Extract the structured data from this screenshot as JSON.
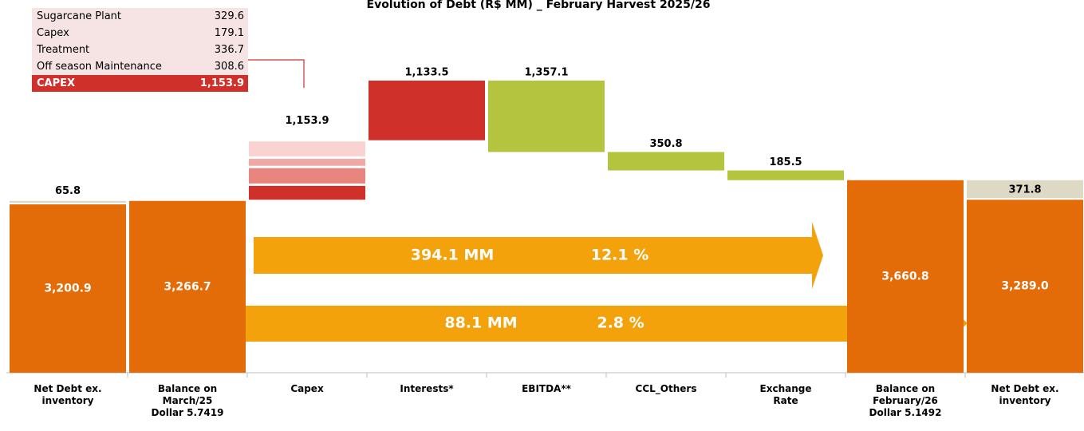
{
  "chart_data": {
    "type": "waterfall",
    "title": "Evolution of Debt (R$ MM) _ February Harvest 2025/26",
    "categories": [
      "Net Debt ex.\ninventory",
      "Balance on\nMarch/25\nDollar 5.7419",
      "Capex",
      "Interests*",
      "EBITDA**",
      "CCL_Others",
      "Exchange\nRate",
      "Balance on\nFebruary/26\nDollar 5.1492",
      "Net Debt ex.\ninventory"
    ],
    "values": [
      3200.9,
      3266.7,
      1153.9,
      1133.5,
      1357.1,
      350.8,
      185.5,
      3660.8,
      3289.0
    ],
    "value_labels": [
      "3,200.9",
      "3,266.7",
      "1,153.9",
      "1,133.5",
      "1,357.1",
      "350.8",
      "185.5",
      "3,660.8",
      "3,289.0"
    ],
    "measure": [
      "total",
      "total",
      "increase",
      "increase",
      "decrease",
      "decrease",
      "decrease",
      "total",
      "total"
    ],
    "colors": {
      "total": "#e36c09",
      "increase": "#d0302a",
      "decrease": "#b5c43f",
      "cap": "#ddd9c4"
    },
    "cap_values": [
      65.8,
      null,
      null,
      null,
      null,
      null,
      null,
      null,
      371.8
    ],
    "capex_breakdown": {
      "names": [
        "Sugarcane Plant",
        "Capex",
        "Treatment",
        "Off season Maintenance"
      ],
      "values": [
        329.6,
        179.1,
        336.7,
        308.6
      ],
      "colors": [
        "#f8d3d2",
        "#f0aaa6",
        "#e8857e",
        "#d0302a"
      ],
      "total_name": "CAPEX"
    },
    "annotations": [
      {
        "amount": "394.1 MM",
        "percent": "12.1 %"
      },
      {
        "amount": "88.1 MM",
        "percent": "2.8 %"
      }
    ]
  }
}
